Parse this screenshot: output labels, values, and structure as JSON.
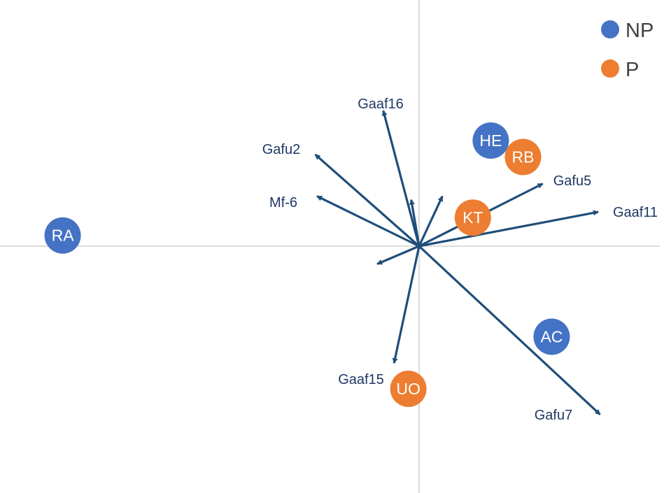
{
  "chart_data": {
    "type": "scatter",
    "subtype": "pca-biplot",
    "title": "",
    "xlabel": "",
    "ylabel": "",
    "xlim": [
      -1.0,
      0.68
    ],
    "ylim": [
      -0.69,
      0.69
    ],
    "grid": false,
    "legend": {
      "position": "top-right",
      "entries": [
        "NP",
        "P"
      ]
    },
    "groups": [
      {
        "name": "NP",
        "color": "#4472c4"
      },
      {
        "name": "P",
        "color": "#ed7d31"
      }
    ],
    "points": [
      {
        "label": "RA",
        "group": "NP",
        "x": -0.995,
        "y": 0.03
      },
      {
        "label": "HE",
        "group": "NP",
        "x": 0.2,
        "y": 0.296
      },
      {
        "label": "RB",
        "group": "P",
        "x": 0.29,
        "y": 0.25
      },
      {
        "label": "KT",
        "group": "P",
        "x": 0.15,
        "y": 0.08
      },
      {
        "label": "AC",
        "group": "NP",
        "x": 0.37,
        "y": -0.254
      },
      {
        "label": "UO",
        "group": "P",
        "x": -0.03,
        "y": -0.4
      }
    ],
    "loadings": [
      {
        "label": "Gaaf16",
        "x": -0.1,
        "y": 0.38
      },
      {
        "label": "Gafu2",
        "x": -0.29,
        "y": 0.257
      },
      {
        "label": "Mf-6",
        "x": -0.285,
        "y": 0.14
      },
      {
        "label": "Gafu5",
        "x": 0.345,
        "y": 0.175
      },
      {
        "label": "Gaaf11",
        "x": 0.5,
        "y": 0.096
      },
      {
        "label": "Gaaf15",
        "x": -0.07,
        "y": -0.328
      },
      {
        "label": "Gafu7",
        "x": 0.505,
        "y": -0.472
      },
      {
        "label": "",
        "x": -0.022,
        "y": 0.13
      },
      {
        "label": "",
        "x": 0.065,
        "y": 0.14
      },
      {
        "label": "",
        "x": -0.117,
        "y": -0.05
      }
    ]
  }
}
